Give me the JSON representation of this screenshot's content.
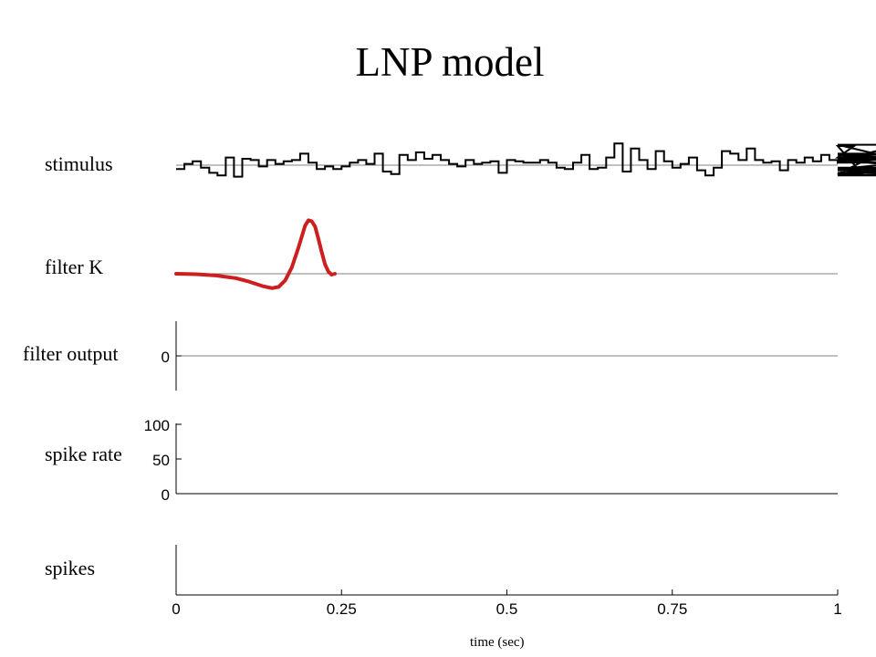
{
  "title": "LNP model",
  "rows": {
    "stimulus": "stimulus",
    "filter": "filter K",
    "filter_output": "filter output",
    "spike_rate": "spike rate",
    "spikes": "spikes"
  },
  "xlabel": "time (sec)",
  "colors": {
    "filter": "#cc1f1f",
    "trace": "#000000",
    "baseline": "#808080"
  },
  "chart_data": {
    "type": "line",
    "xlabel": "time (sec)",
    "xlim": [
      0,
      1
    ],
    "xticks": [
      {
        "value": 0,
        "label": "0"
      },
      {
        "value": 0.25,
        "label": "0.25"
      },
      {
        "value": 0.5,
        "label": "0.5"
      },
      {
        "value": 0.75,
        "label": "0.75"
      },
      {
        "value": 1,
        "label": "1"
      }
    ],
    "panels": {
      "stimulus": {
        "step": 0.0125,
        "values": [
          -0.3,
          0.1,
          0.3,
          -0.2,
          -0.6,
          -0.8,
          0.6,
          -0.9,
          0.5,
          0.4,
          -0.1,
          0.4,
          0.1,
          0.3,
          0.4,
          0.9,
          0.2,
          -0.3,
          -0.1,
          -0.3,
          -0.1,
          0.2,
          0.4,
          0.1,
          0.9,
          -0.5,
          -0.7,
          0.8,
          0.4,
          1.0,
          0.5,
          0.8,
          0.4,
          0.1,
          -0.1,
          0.4,
          0.1,
          0.2,
          0.3,
          -0.6,
          0.4,
          0.3,
          0.2,
          0.2,
          0.4,
          0.2,
          -0.2,
          -0.3,
          0.2,
          0.8,
          -0.3,
          -0.2,
          0.6,
          1.7,
          -0.5,
          1.3,
          0.4,
          -0.3,
          1.1,
          0.3,
          -0.2,
          0.1,
          0.6,
          -0.4,
          -0.8,
          -0.2,
          1.1,
          0.9,
          0.4,
          1.3,
          0.4,
          0.2,
          0.3,
          -0.4,
          0.4,
          0.2,
          0.6,
          0.3,
          0.8,
          0.4,
          0.2,
          0.6,
          1.5,
          -0.7,
          0.6,
          0.9,
          0.4,
          0.4,
          1.6,
          0.2,
          0.8,
          0.4,
          -0.3,
          0.5,
          -0.4,
          -0.8,
          -0.6,
          -0.2
        ]
      },
      "filter": {
        "x": [
          0,
          0.03,
          0.06,
          0.09,
          0.11,
          0.13,
          0.145,
          0.155,
          0.165,
          0.175,
          0.185,
          0.195,
          0.2,
          0.205,
          0.21,
          0.215,
          0.22,
          0.225,
          0.23,
          0.235,
          0.24
        ],
        "y": [
          0,
          -0.01,
          -0.04,
          -0.1,
          -0.18,
          -0.28,
          -0.33,
          -0.3,
          -0.15,
          0.15,
          0.6,
          1.1,
          1.22,
          1.2,
          1.08,
          0.8,
          0.5,
          0.22,
          0.05,
          -0.02,
          0
        ]
      },
      "filter_output": {
        "yticks": [
          {
            "value": 0,
            "label": "0"
          }
        ]
      },
      "spike_rate": {
        "ylim": [
          0,
          100
        ],
        "yticks": [
          {
            "value": 0,
            "label": "0"
          },
          {
            "value": 50,
            "label": "50"
          },
          {
            "value": 100,
            "label": "100"
          }
        ]
      },
      "spikes": {}
    }
  }
}
